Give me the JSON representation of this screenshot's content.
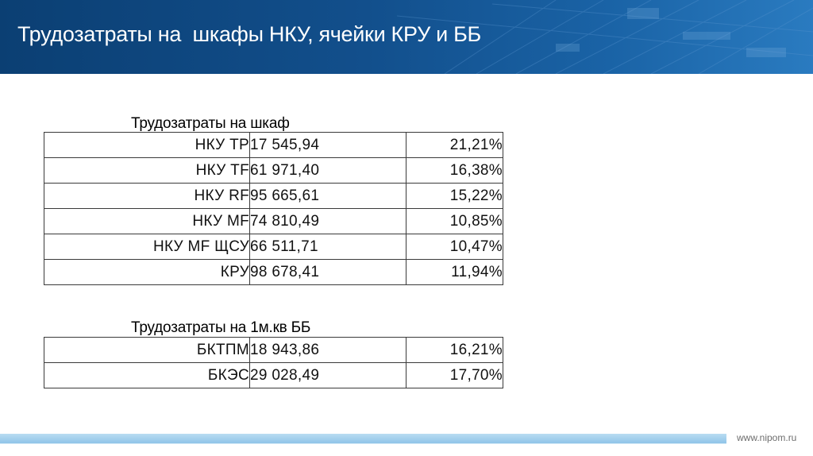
{
  "slide": {
    "title": "Трудозатраты на  шкафы НКУ, ячейки КРУ и ББ",
    "website": "www.nipom.ru"
  },
  "section1": {
    "title": "Трудозатраты на шкаф",
    "rows": [
      {
        "name": "НКУ ТР",
        "value": "17 545,94",
        "percent": "21,21%"
      },
      {
        "name": "НКУ TF",
        "value": "61 971,40",
        "percent": "16,38%"
      },
      {
        "name": "НКУ RF",
        "value": "95 665,61",
        "percent": "15,22%"
      },
      {
        "name": "НКУ MF",
        "value": "74 810,49",
        "percent": "10,85%"
      },
      {
        "name": "НКУ MF ЩСУ",
        "value": "66 511,71",
        "percent": "10,47%"
      },
      {
        "name": "КРУ",
        "value": "98 678,41",
        "percent": "11,94%"
      }
    ]
  },
  "section2": {
    "title": "Трудозатраты на 1м.кв ББ",
    "rows": [
      {
        "name": "БКТПМ",
        "value": "18 943,86",
        "percent": "16,21%"
      },
      {
        "name": "БКЭС",
        "value": "29 028,49",
        "percent": "17,70%"
      }
    ]
  }
}
